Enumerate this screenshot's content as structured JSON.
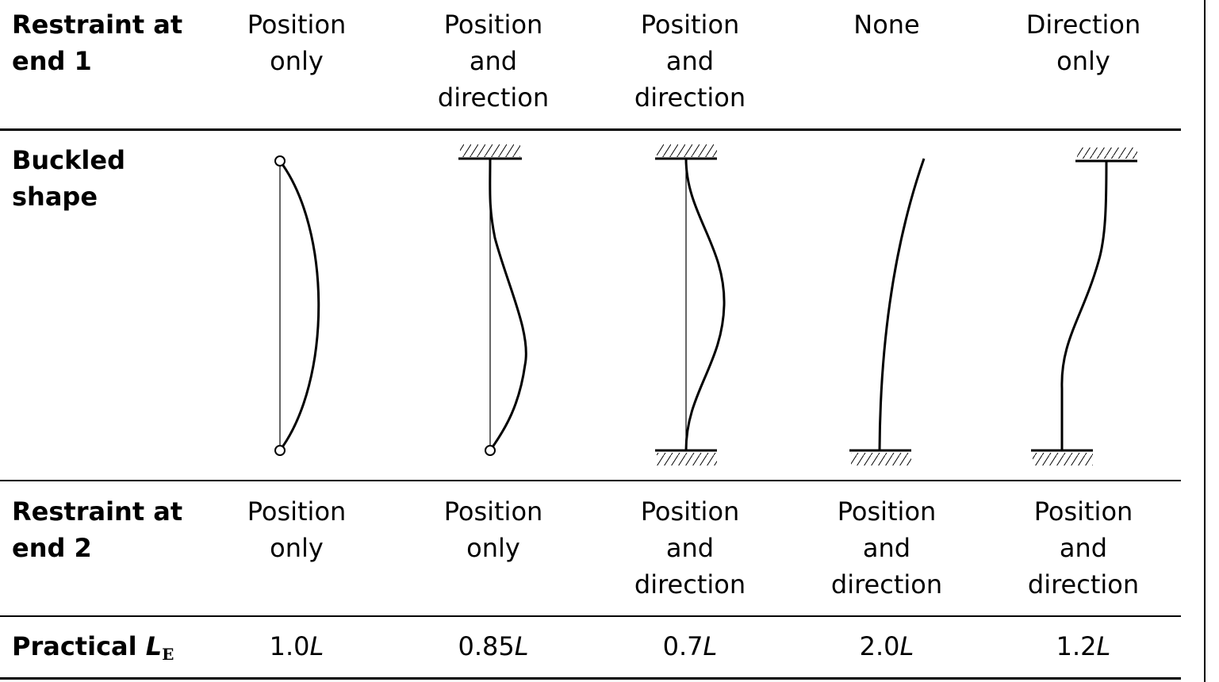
{
  "rows": {
    "end1_header": "Restraint at\nend 1",
    "shape_header": "Buckled\nshape",
    "end2_header": "Restraint at\nend 2",
    "le_header": {
      "prefix": "Practical ",
      "symbol": "L",
      "subscript": "E"
    }
  },
  "columns": [
    {
      "end1": "Position\nonly",
      "end2": "Position\nonly",
      "le_value": "1.0",
      "le_unit": "L"
    },
    {
      "end1": "Position\nand\ndirection",
      "end2": "Position\nonly",
      "le_value": "0.85",
      "le_unit": "L"
    },
    {
      "end1": "Position\nand\ndirection",
      "end2": "Position\nand\ndirection",
      "le_value": "0.7",
      "le_unit": "L"
    },
    {
      "end1": "None",
      "end2": "Position\nand\ndirection",
      "le_value": "2.0",
      "le_unit": "L"
    },
    {
      "end1": "Direction\nonly",
      "end2": "Position\nand\ndirection",
      "le_value": "1.2",
      "le_unit": "L"
    }
  ]
}
